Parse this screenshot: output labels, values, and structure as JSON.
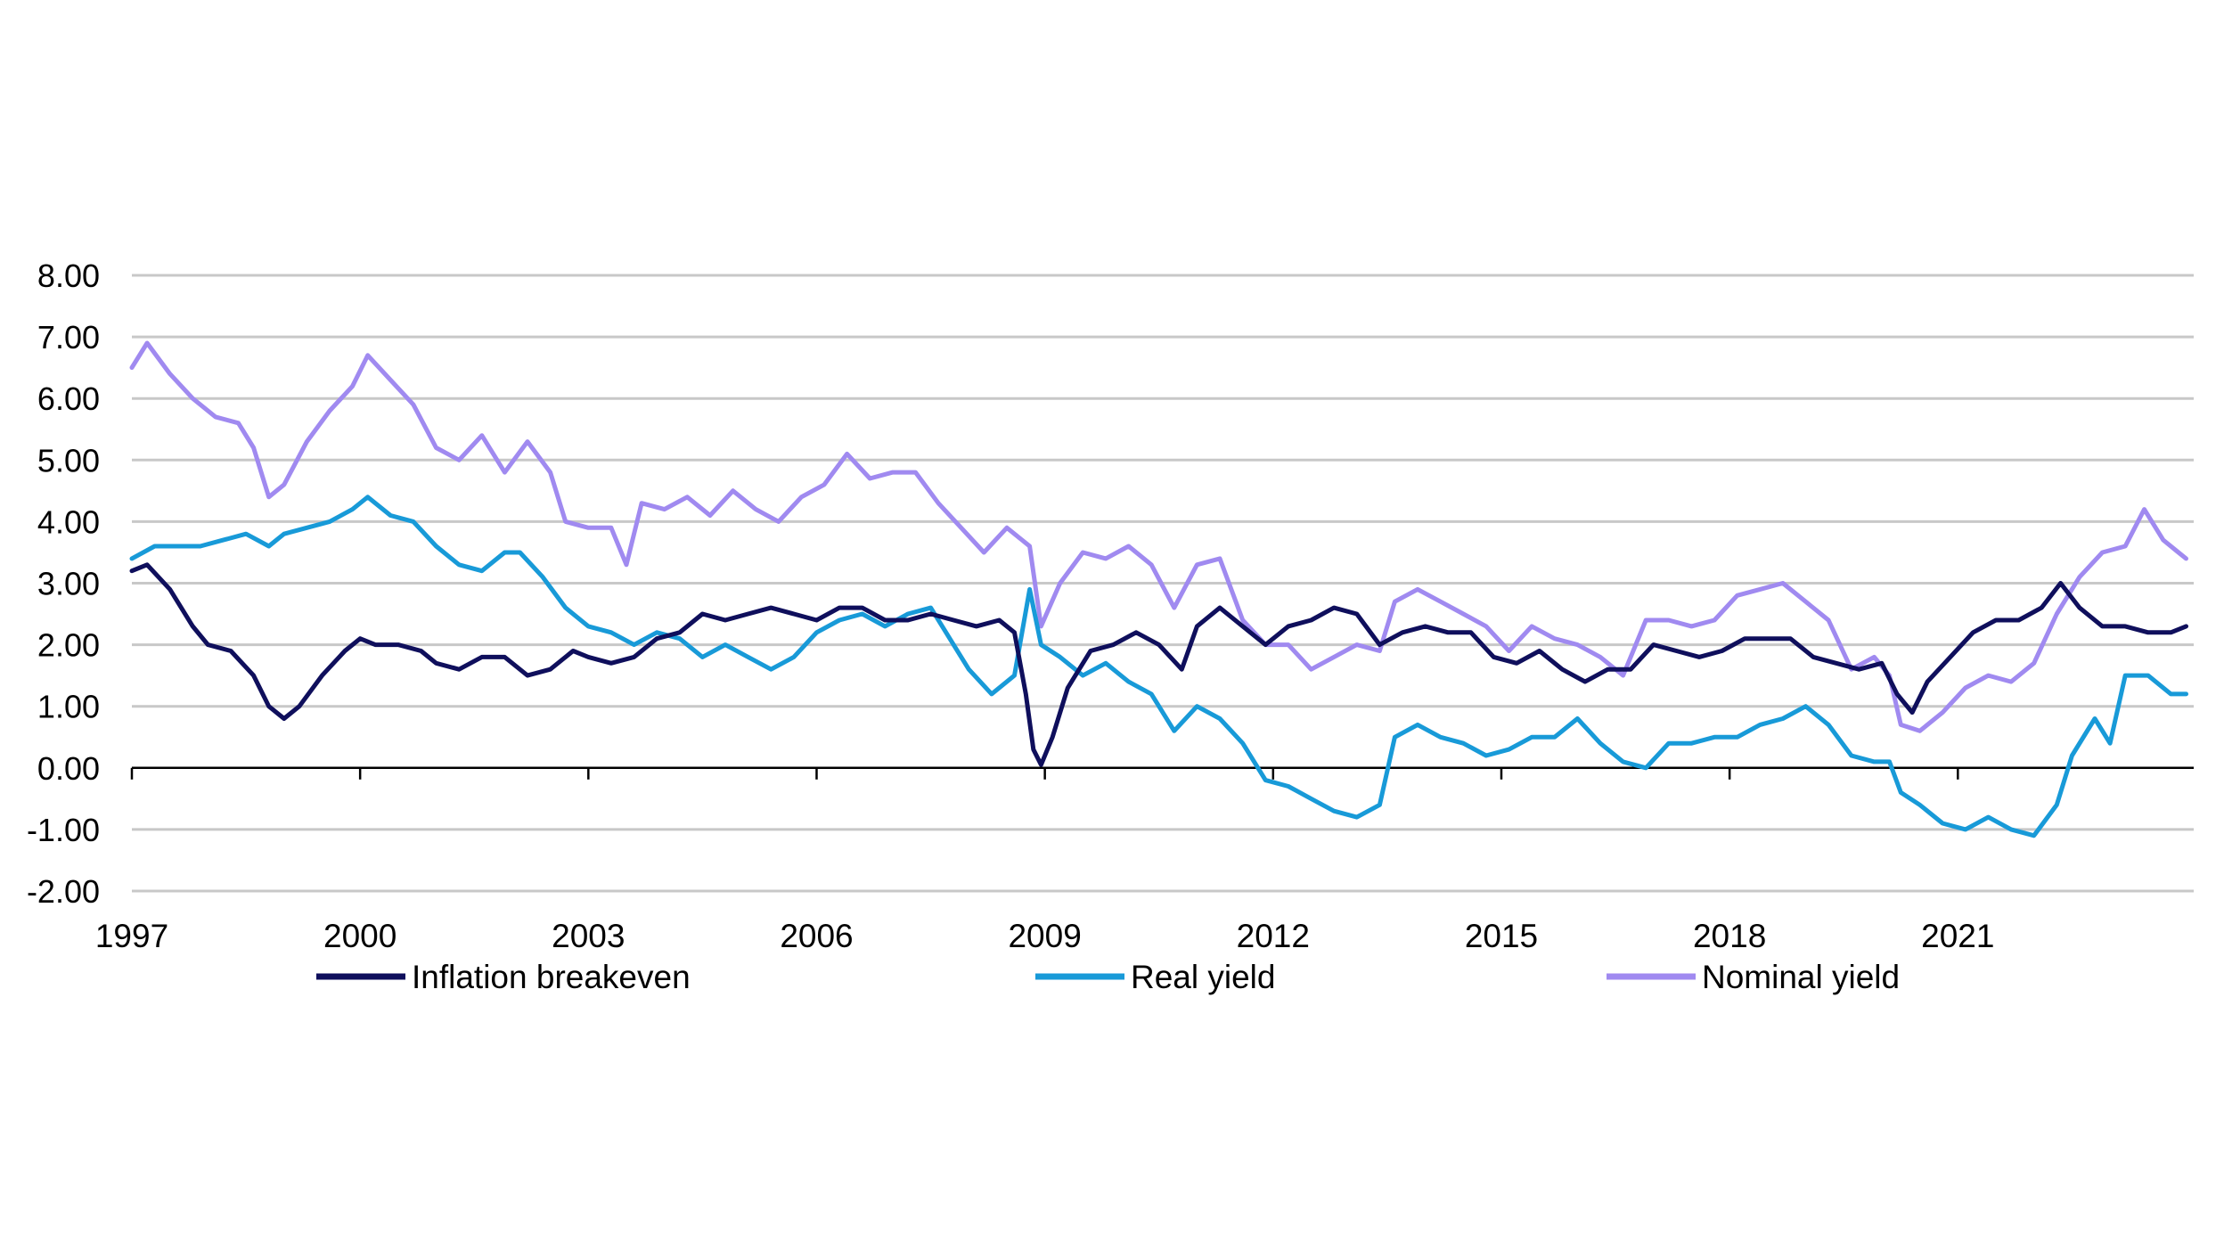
{
  "chart_data": {
    "type": "line",
    "title": "",
    "xlabel": "",
    "ylabel": "",
    "x_range": [
      1997.0,
      2024.1
    ],
    "ylim": [
      -2.0,
      8.0
    ],
    "y_ticks": [
      "8.00",
      "7.00",
      "6.00",
      "5.00",
      "4.00",
      "3.00",
      "2.00",
      "1.00",
      "0.00",
      "-1.00",
      "-2.00"
    ],
    "y_tick_values": [
      8,
      7,
      6,
      5,
      4,
      3,
      2,
      1,
      0,
      -1,
      -2
    ],
    "x_ticks": [
      "1997",
      "2000",
      "2003",
      "2006",
      "2009",
      "2012",
      "2015",
      "2018",
      "2021"
    ],
    "x_tick_values": [
      1997,
      2000,
      2003,
      2006,
      2009,
      2012,
      2015,
      2018,
      2021
    ],
    "grid": true,
    "legend_position": "bottom",
    "series": [
      {
        "name": "Inflation breakeven",
        "color": "#0f0f5c",
        "points": [
          [
            1997.0,
            3.2
          ],
          [
            1997.2,
            3.3
          ],
          [
            1997.5,
            2.9
          ],
          [
            1997.8,
            2.3
          ],
          [
            1998.0,
            2.0
          ],
          [
            1998.3,
            1.9
          ],
          [
            1998.6,
            1.5
          ],
          [
            1998.8,
            1.0
          ],
          [
            1999.0,
            0.8
          ],
          [
            1999.2,
            1.0
          ],
          [
            1999.5,
            1.5
          ],
          [
            1999.8,
            1.9
          ],
          [
            2000.0,
            2.1
          ],
          [
            2000.2,
            2.0
          ],
          [
            2000.5,
            2.0
          ],
          [
            2000.8,
            1.9
          ],
          [
            2001.0,
            1.7
          ],
          [
            2001.3,
            1.6
          ],
          [
            2001.6,
            1.8
          ],
          [
            2001.9,
            1.8
          ],
          [
            2002.2,
            1.5
          ],
          [
            2002.5,
            1.6
          ],
          [
            2002.8,
            1.9
          ],
          [
            2003.0,
            1.8
          ],
          [
            2003.3,
            1.7
          ],
          [
            2003.6,
            1.8
          ],
          [
            2003.9,
            2.1
          ],
          [
            2004.2,
            2.2
          ],
          [
            2004.5,
            2.5
          ],
          [
            2004.8,
            2.4
          ],
          [
            2005.1,
            2.5
          ],
          [
            2005.4,
            2.6
          ],
          [
            2005.7,
            2.5
          ],
          [
            2006.0,
            2.4
          ],
          [
            2006.3,
            2.6
          ],
          [
            2006.6,
            2.6
          ],
          [
            2006.9,
            2.4
          ],
          [
            2007.2,
            2.4
          ],
          [
            2007.5,
            2.5
          ],
          [
            2007.8,
            2.4
          ],
          [
            2008.1,
            2.3
          ],
          [
            2008.4,
            2.4
          ],
          [
            2008.6,
            2.2
          ],
          [
            2008.75,
            1.2
          ],
          [
            2008.85,
            0.3
          ],
          [
            2008.95,
            0.05
          ],
          [
            2009.1,
            0.5
          ],
          [
            2009.3,
            1.3
          ],
          [
            2009.6,
            1.9
          ],
          [
            2009.9,
            2.0
          ],
          [
            2010.2,
            2.2
          ],
          [
            2010.5,
            2.0
          ],
          [
            2010.8,
            1.6
          ],
          [
            2011.0,
            2.3
          ],
          [
            2011.3,
            2.6
          ],
          [
            2011.6,
            2.3
          ],
          [
            2011.9,
            2.0
          ],
          [
            2012.2,
            2.3
          ],
          [
            2012.5,
            2.4
          ],
          [
            2012.8,
            2.6
          ],
          [
            2013.1,
            2.5
          ],
          [
            2013.4,
            2.0
          ],
          [
            2013.7,
            2.2
          ],
          [
            2014.0,
            2.3
          ],
          [
            2014.3,
            2.2
          ],
          [
            2014.6,
            2.2
          ],
          [
            2014.9,
            1.8
          ],
          [
            2015.2,
            1.7
          ],
          [
            2015.5,
            1.9
          ],
          [
            2015.8,
            1.6
          ],
          [
            2016.1,
            1.4
          ],
          [
            2016.4,
            1.6
          ],
          [
            2016.7,
            1.6
          ],
          [
            2017.0,
            2.0
          ],
          [
            2017.3,
            1.9
          ],
          [
            2017.6,
            1.8
          ],
          [
            2017.9,
            1.9
          ],
          [
            2018.2,
            2.1
          ],
          [
            2018.5,
            2.1
          ],
          [
            2018.8,
            2.1
          ],
          [
            2019.1,
            1.8
          ],
          [
            2019.4,
            1.7
          ],
          [
            2019.7,
            1.6
          ],
          [
            2020.0,
            1.7
          ],
          [
            2020.2,
            1.2
          ],
          [
            2020.4,
            0.9
          ],
          [
            2020.6,
            1.4
          ],
          [
            2020.9,
            1.8
          ],
          [
            2021.2,
            2.2
          ],
          [
            2021.5,
            2.4
          ],
          [
            2021.8,
            2.4
          ],
          [
            2022.1,
            2.6
          ],
          [
            2022.35,
            3.0
          ],
          [
            2022.6,
            2.6
          ],
          [
            2022.9,
            2.3
          ],
          [
            2023.2,
            2.3
          ],
          [
            2023.5,
            2.2
          ],
          [
            2023.8,
            2.2
          ],
          [
            2024.0,
            2.3
          ]
        ]
      },
      {
        "name": "Real yield",
        "color": "#189ad8",
        "points": [
          [
            1997.0,
            3.4
          ],
          [
            1997.3,
            3.6
          ],
          [
            1997.6,
            3.6
          ],
          [
            1997.9,
            3.6
          ],
          [
            1998.2,
            3.7
          ],
          [
            1998.5,
            3.8
          ],
          [
            1998.8,
            3.6
          ],
          [
            1999.0,
            3.8
          ],
          [
            1999.3,
            3.9
          ],
          [
            1999.6,
            4.0
          ],
          [
            1999.9,
            4.2
          ],
          [
            2000.1,
            4.4
          ],
          [
            2000.4,
            4.1
          ],
          [
            2000.7,
            4.0
          ],
          [
            2001.0,
            3.6
          ],
          [
            2001.3,
            3.3
          ],
          [
            2001.6,
            3.2
          ],
          [
            2001.9,
            3.5
          ],
          [
            2002.1,
            3.5
          ],
          [
            2002.4,
            3.1
          ],
          [
            2002.7,
            2.6
          ],
          [
            2003.0,
            2.3
          ],
          [
            2003.3,
            2.2
          ],
          [
            2003.6,
            2.0
          ],
          [
            2003.9,
            2.2
          ],
          [
            2004.2,
            2.1
          ],
          [
            2004.5,
            1.8
          ],
          [
            2004.8,
            2.0
          ],
          [
            2005.1,
            1.8
          ],
          [
            2005.4,
            1.6
          ],
          [
            2005.7,
            1.8
          ],
          [
            2006.0,
            2.2
          ],
          [
            2006.3,
            2.4
          ],
          [
            2006.6,
            2.5
          ],
          [
            2006.9,
            2.3
          ],
          [
            2007.2,
            2.5
          ],
          [
            2007.5,
            2.6
          ],
          [
            2007.8,
            2.0
          ],
          [
            2008.0,
            1.6
          ],
          [
            2008.3,
            1.2
          ],
          [
            2008.6,
            1.5
          ],
          [
            2008.8,
            2.9
          ],
          [
            2008.95,
            2.0
          ],
          [
            2009.2,
            1.8
          ],
          [
            2009.5,
            1.5
          ],
          [
            2009.8,
            1.7
          ],
          [
            2010.1,
            1.4
          ],
          [
            2010.4,
            1.2
          ],
          [
            2010.7,
            0.6
          ],
          [
            2011.0,
            1.0
          ],
          [
            2011.3,
            0.8
          ],
          [
            2011.6,
            0.4
          ],
          [
            2011.9,
            -0.2
          ],
          [
            2012.2,
            -0.3
          ],
          [
            2012.5,
            -0.5
          ],
          [
            2012.8,
            -0.7
          ],
          [
            2013.1,
            -0.8
          ],
          [
            2013.4,
            -0.6
          ],
          [
            2013.6,
            0.5
          ],
          [
            2013.9,
            0.7
          ],
          [
            2014.2,
            0.5
          ],
          [
            2014.5,
            0.4
          ],
          [
            2014.8,
            0.2
          ],
          [
            2015.1,
            0.3
          ],
          [
            2015.4,
            0.5
          ],
          [
            2015.7,
            0.5
          ],
          [
            2016.0,
            0.8
          ],
          [
            2016.3,
            0.4
          ],
          [
            2016.6,
            0.1
          ],
          [
            2016.9,
            0.0
          ],
          [
            2017.2,
            0.4
          ],
          [
            2017.5,
            0.4
          ],
          [
            2017.8,
            0.5
          ],
          [
            2018.1,
            0.5
          ],
          [
            2018.4,
            0.7
          ],
          [
            2018.7,
            0.8
          ],
          [
            2019.0,
            1.0
          ],
          [
            2019.3,
            0.7
          ],
          [
            2019.6,
            0.2
          ],
          [
            2019.9,
            0.1
          ],
          [
            2020.1,
            0.1
          ],
          [
            2020.25,
            -0.4
          ],
          [
            2020.5,
            -0.6
          ],
          [
            2020.8,
            -0.9
          ],
          [
            2021.1,
            -1.0
          ],
          [
            2021.4,
            -0.8
          ],
          [
            2021.7,
            -1.0
          ],
          [
            2022.0,
            -1.1
          ],
          [
            2022.3,
            -0.6
          ],
          [
            2022.5,
            0.2
          ],
          [
            2022.8,
            0.8
          ],
          [
            2023.0,
            0.4
          ],
          [
            2023.2,
            1.5
          ],
          [
            2023.5,
            1.5
          ],
          [
            2023.8,
            1.2
          ],
          [
            2024.0,
            1.2
          ]
        ]
      },
      {
        "name": "Nominal yield",
        "color": "#a08af0",
        "points": [
          [
            1997.0,
            6.5
          ],
          [
            1997.2,
            6.9
          ],
          [
            1997.5,
            6.4
          ],
          [
            1997.8,
            6.0
          ],
          [
            1998.1,
            5.7
          ],
          [
            1998.4,
            5.6
          ],
          [
            1998.6,
            5.2
          ],
          [
            1998.8,
            4.4
          ],
          [
            1999.0,
            4.6
          ],
          [
            1999.3,
            5.3
          ],
          [
            1999.6,
            5.8
          ],
          [
            1999.9,
            6.2
          ],
          [
            2000.1,
            6.7
          ],
          [
            2000.4,
            6.3
          ],
          [
            2000.7,
            5.9
          ],
          [
            2001.0,
            5.2
          ],
          [
            2001.3,
            5.0
          ],
          [
            2001.6,
            5.4
          ],
          [
            2001.9,
            4.8
          ],
          [
            2002.2,
            5.3
          ],
          [
            2002.5,
            4.8
          ],
          [
            2002.7,
            4.0
          ],
          [
            2003.0,
            3.9
          ],
          [
            2003.3,
            3.9
          ],
          [
            2003.5,
            3.3
          ],
          [
            2003.7,
            4.3
          ],
          [
            2004.0,
            4.2
          ],
          [
            2004.3,
            4.4
          ],
          [
            2004.6,
            4.1
          ],
          [
            2004.9,
            4.5
          ],
          [
            2005.2,
            4.2
          ],
          [
            2005.5,
            4.0
          ],
          [
            2005.8,
            4.4
          ],
          [
            2006.1,
            4.6
          ],
          [
            2006.4,
            5.1
          ],
          [
            2006.7,
            4.7
          ],
          [
            2007.0,
            4.8
          ],
          [
            2007.3,
            4.8
          ],
          [
            2007.6,
            4.3
          ],
          [
            2007.9,
            3.9
          ],
          [
            2008.2,
            3.5
          ],
          [
            2008.5,
            3.9
          ],
          [
            2008.8,
            3.6
          ],
          [
            2008.95,
            2.3
          ],
          [
            2009.2,
            3.0
          ],
          [
            2009.5,
            3.5
          ],
          [
            2009.8,
            3.4
          ],
          [
            2010.1,
            3.6
          ],
          [
            2010.4,
            3.3
          ],
          [
            2010.7,
            2.6
          ],
          [
            2011.0,
            3.3
          ],
          [
            2011.3,
            3.4
          ],
          [
            2011.6,
            2.4
          ],
          [
            2011.9,
            2.0
          ],
          [
            2012.2,
            2.0
          ],
          [
            2012.5,
            1.6
          ],
          [
            2012.8,
            1.8
          ],
          [
            2013.1,
            2.0
          ],
          [
            2013.4,
            1.9
          ],
          [
            2013.6,
            2.7
          ],
          [
            2013.9,
            2.9
          ],
          [
            2014.2,
            2.7
          ],
          [
            2014.5,
            2.5
          ],
          [
            2014.8,
            2.3
          ],
          [
            2015.1,
            1.9
          ],
          [
            2015.4,
            2.3
          ],
          [
            2015.7,
            2.1
          ],
          [
            2016.0,
            2.0
          ],
          [
            2016.3,
            1.8
          ],
          [
            2016.6,
            1.5
          ],
          [
            2016.9,
            2.4
          ],
          [
            2017.2,
            2.4
          ],
          [
            2017.5,
            2.3
          ],
          [
            2017.8,
            2.4
          ],
          [
            2018.1,
            2.8
          ],
          [
            2018.4,
            2.9
          ],
          [
            2018.7,
            3.0
          ],
          [
            2019.0,
            2.7
          ],
          [
            2019.3,
            2.4
          ],
          [
            2019.6,
            1.6
          ],
          [
            2019.9,
            1.8
          ],
          [
            2020.1,
            1.5
          ],
          [
            2020.25,
            0.7
          ],
          [
            2020.5,
            0.6
          ],
          [
            2020.8,
            0.9
          ],
          [
            2021.1,
            1.3
          ],
          [
            2021.4,
            1.5
          ],
          [
            2021.7,
            1.4
          ],
          [
            2022.0,
            1.7
          ],
          [
            2022.3,
            2.5
          ],
          [
            2022.6,
            3.1
          ],
          [
            2022.9,
            3.5
          ],
          [
            2023.2,
            3.6
          ],
          [
            2023.45,
            4.2
          ],
          [
            2023.7,
            3.7
          ],
          [
            2023.9,
            3.5
          ],
          [
            2024.0,
            3.4
          ]
        ]
      }
    ]
  }
}
